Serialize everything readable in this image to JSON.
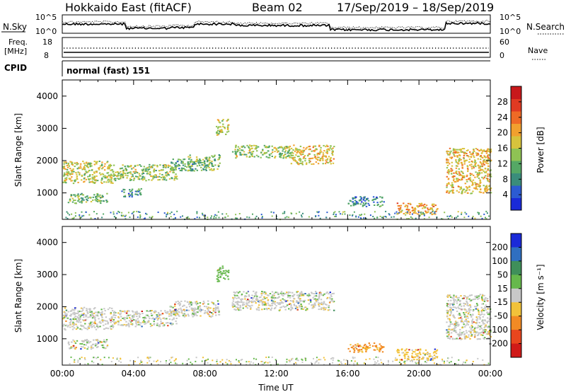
{
  "header": {
    "radar": "Hokkaido East (fitACF)",
    "beam": "Beam 02",
    "dates": "17/Sep/2019 – 18/Sep/2019"
  },
  "nsky_panel": {
    "left_label": "N.Sky",
    "right_label": "N.Search",
    "left_ticks": [
      "10^5",
      "10^0"
    ],
    "right_ticks": [
      "10^5",
      "10^0"
    ]
  },
  "freq_panel": {
    "left_label_1": "Freq.",
    "left_label_2": "[MHz]",
    "left_ticks": [
      "18",
      "8"
    ],
    "right_label": "Nave",
    "right_ticks": [
      "60",
      "0"
    ]
  },
  "cpid": {
    "label": "CPID",
    "value": "normal (fast) 151"
  },
  "chart_data": [
    {
      "type": "heatmap",
      "quantity": "Power",
      "ylabel": "Slant Range [km]",
      "xlabel": "Time UT",
      "ylim": [
        180,
        4500
      ],
      "xlim": [
        "00:00",
        "24:00"
      ],
      "yticks": [
        "1000",
        "2000",
        "3000",
        "4000"
      ],
      "colorbar": {
        "label": "Power [dB]",
        "ticks": [
          "4",
          "8",
          "12",
          "16",
          "20",
          "24",
          "28"
        ],
        "colors": [
          "#1a2ad8",
          "#2c5bd2",
          "#3a8d7b",
          "#55a865",
          "#8fc254",
          "#d7c33c",
          "#f2a02e",
          "#ef6a26",
          "#e03a22",
          "#c8181b"
        ]
      },
      "echo_regions": [
        {
          "t": [
            0.0,
            2.8
          ],
          "r": [
            1300,
            2000
          ],
          "level": 16
        },
        {
          "t": [
            0.3,
            2.5
          ],
          "r": [
            700,
            1000
          ],
          "level": 12
        },
        {
          "t": [
            2.8,
            6.4
          ],
          "r": [
            1400,
            1900
          ],
          "level": 14
        },
        {
          "t": [
            3.3,
            4.4
          ],
          "r": [
            900,
            1150
          ],
          "level": 8
        },
        {
          "t": [
            6.0,
            7.3
          ],
          "r": [
            1700,
            2100
          ],
          "level": 10
        },
        {
          "t": [
            7.0,
            8.8
          ],
          "r": [
            1700,
            2200
          ],
          "level": 12
        },
        {
          "t": [
            8.6,
            9.3
          ],
          "r": [
            2800,
            3300
          ],
          "level": 16
        },
        {
          "t": [
            9.5,
            12.8
          ],
          "r": [
            2100,
            2500
          ],
          "level": 14
        },
        {
          "t": [
            12.8,
            15.2
          ],
          "r": [
            1900,
            2500
          ],
          "level": 18
        },
        {
          "t": [
            16.0,
            18.0
          ],
          "r": [
            600,
            900
          ],
          "level": 8
        },
        {
          "t": [
            18.7,
            21.0
          ],
          "r": [
            350,
            700
          ],
          "level": 20
        },
        {
          "t": [
            21.5,
            24.0
          ],
          "r": [
            1000,
            2400
          ],
          "level": 18
        }
      ]
    },
    {
      "type": "heatmap",
      "quantity": "Velocity",
      "ylabel": "Slant Range [km]",
      "xlabel": "Time UT",
      "ylim": [
        180,
        4500
      ],
      "xlim": [
        "00:00",
        "24:00"
      ],
      "yticks": [
        "1000",
        "2000",
        "3000",
        "4000"
      ],
      "xticks": [
        "00:00",
        "04:00",
        "08:00",
        "12:00",
        "16:00",
        "20:00",
        "00:00"
      ],
      "colorbar": {
        "label": "Velocity [m s⁻¹]",
        "ticks": [
          "200",
          "100",
          "50",
          "15",
          "-15",
          "-50",
          "-100",
          "-200"
        ],
        "colors": [
          "#1a2ad8",
          "#2f6fc0",
          "#3f8f5a",
          "#66b84c",
          "#c8c8c8",
          "#f2c23a",
          "#f28a24",
          "#e8461e",
          "#d01a18"
        ]
      },
      "echo_regions": [
        {
          "t": [
            0.0,
            2.8
          ],
          "r": [
            1300,
            2000
          ],
          "v": 0
        },
        {
          "t": [
            0.3,
            2.5
          ],
          "r": [
            700,
            1000
          ],
          "v": 0
        },
        {
          "t": [
            2.8,
            6.4
          ],
          "r": [
            1400,
            1900
          ],
          "v": 0
        },
        {
          "t": [
            6.0,
            8.8
          ],
          "r": [
            1700,
            2200
          ],
          "v": 0
        },
        {
          "t": [
            8.6,
            9.3
          ],
          "r": [
            2800,
            3300
          ],
          "v": 30
        },
        {
          "t": [
            9.5,
            15.2
          ],
          "r": [
            1900,
            2500
          ],
          "v": 0
        },
        {
          "t": [
            16.0,
            18.0
          ],
          "r": [
            600,
            900
          ],
          "v": -60
        },
        {
          "t": [
            18.7,
            21.0
          ],
          "r": [
            350,
            700
          ],
          "v": -30
        },
        {
          "t": [
            21.5,
            24.0
          ],
          "r": [
            1000,
            2400
          ],
          "v": 0
        }
      ]
    }
  ]
}
